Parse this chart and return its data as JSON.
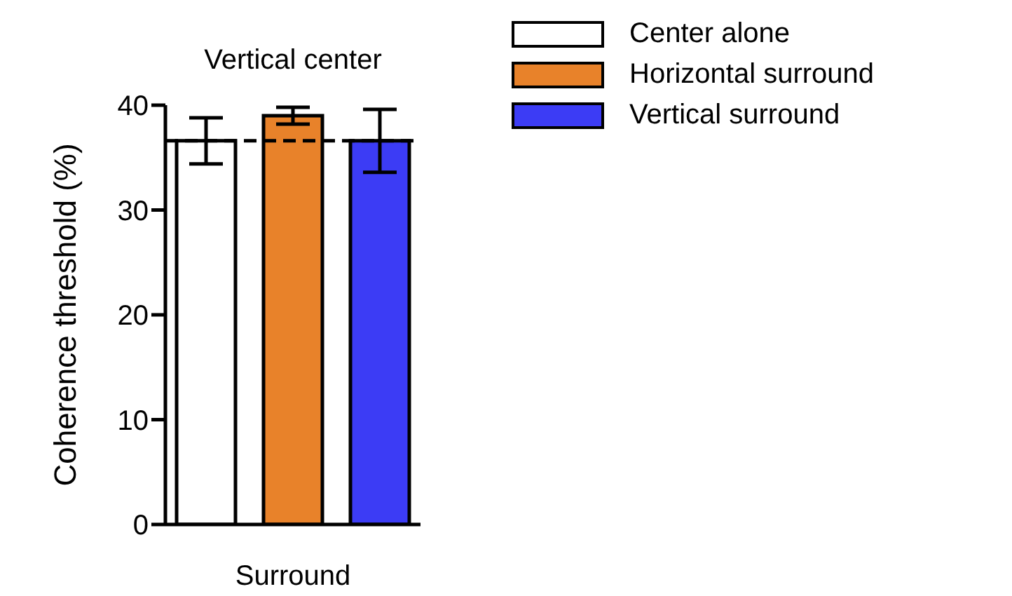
{
  "chart_data": {
    "type": "bar",
    "title": "Vertical center",
    "xlabel": "Surround",
    "ylabel": "Coherence threshold (%)",
    "categories": [
      null
    ],
    "series": [
      {
        "name": "Center alone",
        "color": "#ffffff",
        "values": [
          36.6
        ],
        "errors": [
          2.2
        ]
      },
      {
        "name": "Horizontal surround",
        "color": "#e8822a",
        "values": [
          39.0
        ],
        "errors": [
          0.8
        ]
      },
      {
        "name": "Vertical surround",
        "color": "#3c3cf5",
        "values": [
          36.6
        ],
        "errors": [
          3.0
        ]
      }
    ],
    "ylim": [
      0,
      40
    ],
    "yticks": [
      0,
      10,
      20,
      30,
      40
    ],
    "grid": false,
    "legend": "top right",
    "ref_lines": [
      {
        "axis": "y",
        "value": 36.6,
        "line_style": "dashed",
        "color": "#000000"
      }
    ]
  }
}
